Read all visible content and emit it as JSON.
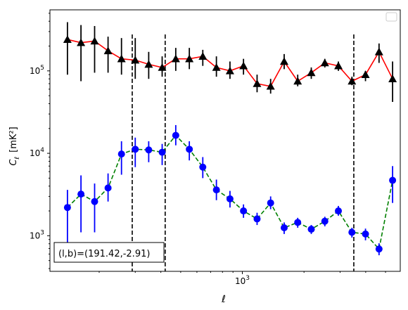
{
  "chart_data": {
    "type": "scatter",
    "x_scale": "log",
    "y_scale": "log",
    "xlim": [
      115,
      5900
    ],
    "ylim": [
      370,
      550000
    ],
    "xlabel": "ℓ",
    "ylabel_main": "C",
    "ylabel_sub": "ℓ",
    "ylabel_unit": "[mK²]",
    "x_tick_label": {
      "base": "10",
      "exp": "3"
    },
    "y_tick_labels": [
      {
        "value": 1000,
        "base": "10",
        "exp": "3"
      },
      {
        "value": 10000,
        "base": "10",
        "exp": "4"
      },
      {
        "value": 100000,
        "base": "10",
        "exp": "5"
      }
    ],
    "vlines": [
      290,
      420,
      3500
    ],
    "annotation": "(l,b)=(191.42,-2.91)",
    "legend": {
      "location": "upper right",
      "entries": []
    },
    "series": [
      {
        "marker": "triangle",
        "color": "#000000",
        "errorbar_color": "#000000",
        "line_color": "#ff0000",
        "line_style": "solid",
        "x": [
          140,
          163,
          190,
          221,
          257,
          300,
          349,
          406,
          473,
          551,
          641,
          747,
          870,
          1013,
          1180,
          1374,
          1600,
          1863,
          2170,
          2527,
          2943,
          3427,
          3991,
          4648,
          5413
        ],
        "y": [
          240000,
          220000,
          230000,
          175000,
          140000,
          135000,
          120000,
          110000,
          140000,
          140000,
          150000,
          110000,
          100000,
          115000,
          70000,
          65000,
          130000,
          75000,
          95000,
          125000,
          115000,
          75000,
          90000,
          170000,
          80000
        ],
        "y_low": [
          90000,
          75000,
          95000,
          95000,
          90000,
          80000,
          80000,
          85000,
          100000,
          105000,
          115000,
          85000,
          80000,
          90000,
          55000,
          53000,
          105000,
          65000,
          80000,
          110000,
          100000,
          67000,
          75000,
          125000,
          42000
        ],
        "y_high": [
          390000,
          360000,
          350000,
          260000,
          250000,
          250000,
          170000,
          150000,
          190000,
          190000,
          180000,
          150000,
          130000,
          140000,
          90000,
          80000,
          160000,
          90000,
          110000,
          140000,
          130000,
          85000,
          100000,
          215000,
          130000
        ]
      },
      {
        "marker": "circle",
        "color": "#0000ff",
        "errorbar_color": "#0000ff",
        "line_color": "#008000",
        "line_style": "dashed",
        "x": [
          140,
          163,
          190,
          221,
          257,
          300,
          349,
          406,
          473,
          551,
          641,
          747,
          870,
          1013,
          1180,
          1374,
          1600,
          1863,
          2170,
          2527,
          2943,
          3427,
          3991,
          4648,
          5413
        ],
        "y": [
          2200,
          3200,
          2600,
          3800,
          9800,
          11200,
          11000,
          10300,
          16500,
          11200,
          6800,
          3600,
          2800,
          2000,
          1600,
          2500,
          1250,
          1450,
          1200,
          1500,
          2000,
          1100,
          1050,
          690,
          4700
        ],
        "y_low": [
          800,
          1100,
          1100,
          2600,
          5500,
          6800,
          7800,
          7200,
          12500,
          8200,
          5000,
          2700,
          2200,
          1650,
          1350,
          2100,
          1050,
          1250,
          1050,
          1300,
          1750,
          950,
          880,
          580,
          2500
        ],
        "y_high": [
          3600,
          5400,
          4300,
          5700,
          14000,
          15500,
          14000,
          13000,
          22000,
          14000,
          9000,
          4800,
          3500,
          2400,
          1900,
          3000,
          1450,
          1650,
          1350,
          1700,
          2300,
          1250,
          1220,
          810,
          7000
        ]
      }
    ]
  }
}
